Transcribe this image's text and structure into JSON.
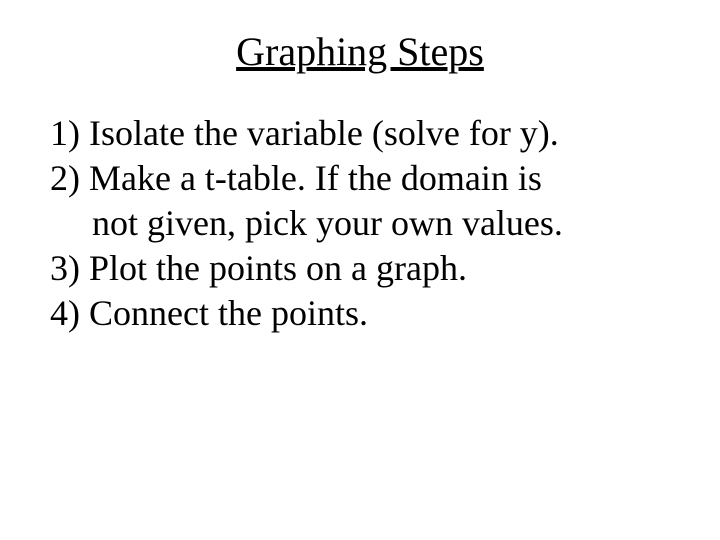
{
  "slide": {
    "title": "Graphing Steps",
    "line1": "1) Isolate the variable (solve for y).",
    "line2a": "2) Make a t-table. If the domain is",
    "line2b": "not given, pick your own values.",
    "line3": "3) Plot the points on a graph.",
    "line4": "4) Connect the points."
  },
  "style": {
    "background_color": "#ffffff",
    "text_color": "#000000",
    "font_family": "Times New Roman",
    "title_fontsize": 40,
    "body_fontsize": 36,
    "title_underline": true,
    "title_align": "center",
    "body_line_height": 1.25,
    "slide_width": 720,
    "slide_height": 540
  }
}
